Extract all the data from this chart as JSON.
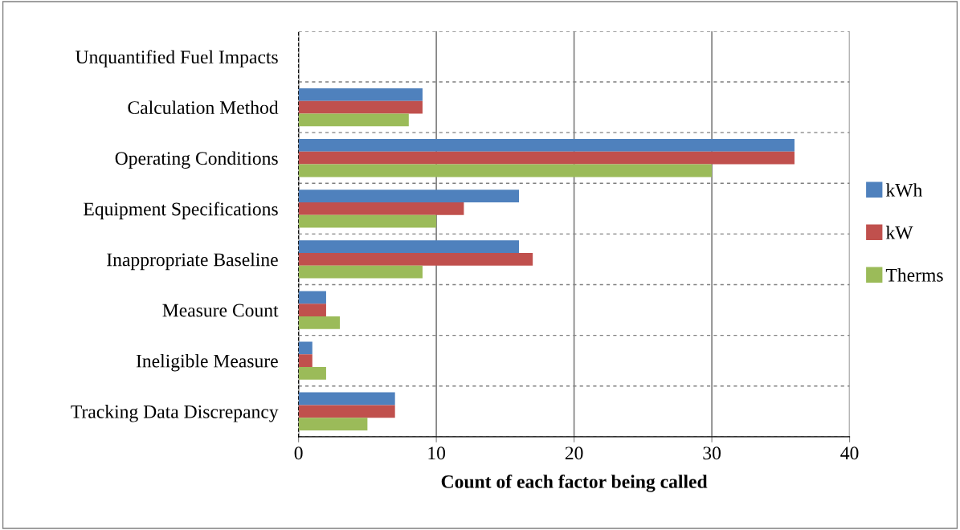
{
  "chart_data": {
    "type": "bar",
    "orientation": "horizontal",
    "xlabel": "Count of each factor being called",
    "categories": [
      "Unquantified Fuel Impacts",
      "Calculation Method",
      "Operating Conditions",
      "Equipment Specifications",
      "Inappropriate Baseline",
      "Measure Count",
      "Ineligible Measure",
      "Tracking Data Discrepancy"
    ],
    "series": [
      {
        "name": "kWh",
        "color": "#4f81bd",
        "values": [
          0,
          9,
          36,
          16,
          16,
          2,
          1,
          7
        ]
      },
      {
        "name": "kW",
        "color": "#c0504d",
        "values": [
          0,
          9,
          36,
          12,
          17,
          2,
          1,
          7
        ]
      },
      {
        "name": "Therms",
        "color": "#9bbb59",
        "values": [
          0,
          8,
          30,
          10,
          9,
          3,
          2,
          5
        ]
      }
    ],
    "xlim": [
      0,
      40
    ],
    "xticks": [
      0,
      10,
      20,
      30,
      40
    ],
    "grid": true,
    "legend": "right"
  }
}
